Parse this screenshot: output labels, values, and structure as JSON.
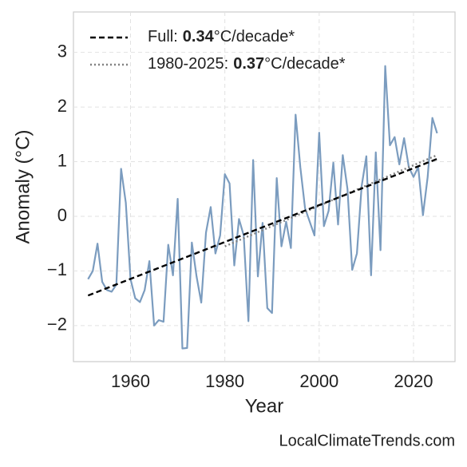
{
  "chart_data": {
    "type": "line",
    "xlabel": "Year",
    "ylabel": "Anomaly (°C)",
    "footer": "LocalClimateTrends.com",
    "x": [
      1951,
      1952,
      1953,
      1954,
      1955,
      1956,
      1957,
      1958,
      1959,
      1960,
      1961,
      1962,
      1963,
      1964,
      1965,
      1966,
      1967,
      1968,
      1969,
      1970,
      1971,
      1972,
      1973,
      1974,
      1975,
      1976,
      1977,
      1978,
      1979,
      1980,
      1981,
      1982,
      1983,
      1984,
      1985,
      1986,
      1987,
      1988,
      1989,
      1990,
      1991,
      1992,
      1993,
      1994,
      1995,
      1996,
      1997,
      1998,
      1999,
      2000,
      2001,
      2002,
      2003,
      2004,
      2005,
      2006,
      2007,
      2008,
      2009,
      2010,
      2011,
      2012,
      2013,
      2014,
      2015,
      2016,
      2017,
      2018,
      2019,
      2020,
      2021,
      2022,
      2023,
      2024,
      2025
    ],
    "values": [
      -1.15,
      -1.0,
      -0.5,
      -1.2,
      -1.35,
      -1.38,
      -1.25,
      0.87,
      0.25,
      -1.15,
      -1.5,
      -1.57,
      -1.35,
      -0.82,
      -2.0,
      -1.9,
      -1.93,
      -0.52,
      -1.08,
      0.32,
      -2.42,
      -2.41,
      -0.48,
      -1.1,
      -1.58,
      -0.3,
      0.17,
      -0.68,
      -0.35,
      0.77,
      0.6,
      -0.9,
      -0.05,
      -0.35,
      -1.92,
      1.03,
      -1.1,
      -0.12,
      -1.68,
      -1.77,
      0.7,
      -0.55,
      -0.1,
      -0.58,
      1.86,
      0.9,
      0.15,
      -0.1,
      -0.35,
      1.53,
      -0.18,
      0.1,
      0.98,
      -0.15,
      1.12,
      0.5,
      -0.98,
      -0.68,
      0.55,
      1.1,
      -1.08,
      1.17,
      -0.62,
      2.75,
      1.3,
      1.45,
      0.95,
      1.43,
      0.9,
      0.72,
      0.9,
      0.02,
      0.72,
      1.8,
      1.52
    ],
    "color": "#7b9cbf",
    "trends": [
      {
        "name": "Full:",
        "slope": 0.34,
        "unit": "°C/decade*",
        "color": "#000000",
        "dash": "dashed",
        "x": [
          1951,
          2025
        ],
        "values": [
          -1.45,
          1.05
        ]
      },
      {
        "name": "1980-2025:",
        "slope": 0.37,
        "unit": "°C/decade*",
        "color": "#808080",
        "dash": "dotted",
        "x": [
          1980,
          2025
        ],
        "values": [
          -0.55,
          1.12
        ]
      }
    ],
    "xlim": [
      1947.9,
      2028.8
    ],
    "ylim": [
      -2.66,
      3.74
    ],
    "xticks": [
      1960,
      1980,
      2000,
      2020
    ],
    "yticks": [
      {
        "value": -2,
        "label": "−2"
      },
      {
        "value": -1,
        "label": "−1"
      },
      0,
      1,
      2,
      3
    ],
    "grid": true,
    "legend": "upper left"
  }
}
